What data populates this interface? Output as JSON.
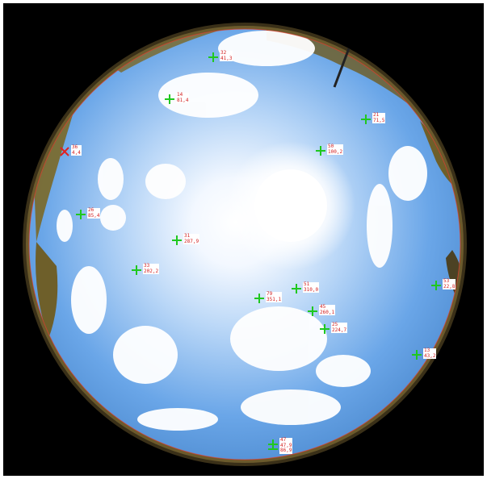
{
  "image": {
    "scene": "fisheye sky photograph with detected sun/cloud markers",
    "marker_color_ok": "#1fc81f",
    "marker_color_bad": "#e02020",
    "label_text_color": "#d32020"
  },
  "markers": [
    {
      "id": "m32",
      "lines": [
        "32",
        "41,3"
      ],
      "status": "ok"
    },
    {
      "id": "m14",
      "lines": [
        "14",
        "81,4"
      ],
      "status": "ok"
    },
    {
      "id": "m21",
      "lines": [
        "21",
        "71,5"
      ],
      "status": "ok"
    },
    {
      "id": "m36",
      "lines": [
        "36",
        "4,4"
      ],
      "status": "rejected"
    },
    {
      "id": "m50",
      "lines": [
        "50",
        "100,2"
      ],
      "status": "ok"
    },
    {
      "id": "m26",
      "lines": [
        "26",
        "85,4"
      ],
      "status": "ok"
    },
    {
      "id": "m31",
      "lines": [
        "31",
        "287,9"
      ],
      "status": "ok"
    },
    {
      "id": "m33",
      "lines": [
        "33",
        "202,2"
      ],
      "status": "ok"
    },
    {
      "id": "m53",
      "lines": [
        "53",
        "22,8"
      ],
      "status": "ok"
    },
    {
      "id": "m79",
      "lines": [
        "79",
        "351,1"
      ],
      "status": "ok"
    },
    {
      "id": "m51",
      "lines": [
        "51",
        "310,0"
      ],
      "status": "ok"
    },
    {
      "id": "m45",
      "lines": [
        "45",
        "260,1"
      ],
      "status": "ok"
    },
    {
      "id": "m25",
      "lines": [
        "25",
        "224,7"
      ],
      "status": "ok"
    },
    {
      "id": "m13",
      "lines": [
        "13",
        "43,2"
      ],
      "status": "ok"
    },
    {
      "id": "m47",
      "lines": [
        "47",
        "47,9",
        "86,9"
      ],
      "status": "ok"
    }
  ]
}
